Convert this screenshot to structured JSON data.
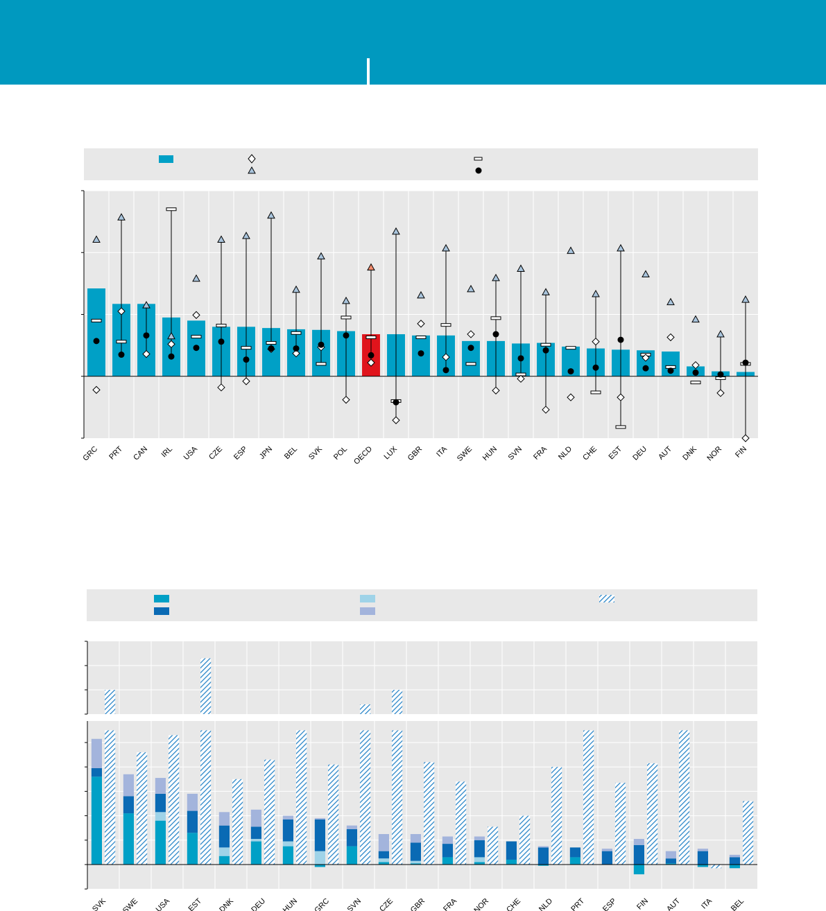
{
  "colors": {
    "banner": "#0099bf",
    "bar": "#00a0c6",
    "bar_highlight": "#e0141c",
    "triangle_fill": "#a9c4dc",
    "triangle_highlight": "#f08a6c",
    "panel_bg": "#e8e8e8",
    "stack_1": "#00a0c6",
    "stack_2": "#0a6ab4",
    "stack_3": "#9fd3e8",
    "stack_4": "#a3b4dc",
    "hatch": "#2b86c8"
  },
  "chart_data": [
    {
      "type": "bar",
      "title": "",
      "legend": [
        "",
        "",
        "",
        "",
        ""
      ],
      "categories": [
        "GRC",
        "PRT",
        "CAN",
        "IRL",
        "USA",
        "CZE",
        "ESP",
        "JPN",
        "BEL",
        "SVK",
        "POL",
        "OECD",
        "LUX",
        "GBR",
        "ITA",
        "SWE",
        "HUN",
        "SVN",
        "FRA",
        "NLD",
        "CHE",
        "EST",
        "DEU",
        "AUT",
        "DNK",
        "NOR",
        "FIN"
      ],
      "highlight": "OECD",
      "ylim": [
        -1.0,
        3.0
      ],
      "bars": [
        1.42,
        1.17,
        1.17,
        0.95,
        0.9,
        0.8,
        0.8,
        0.78,
        0.76,
        0.75,
        0.73,
        0.68,
        0.68,
        0.66,
        0.66,
        0.57,
        0.57,
        0.53,
        0.54,
        0.48,
        0.45,
        0.43,
        0.42,
        0.4,
        0.16,
        0.08,
        0.07
      ],
      "diamonds": [
        -0.22,
        1.05,
        0.36,
        0.52,
        0.99,
        -0.18,
        -0.08,
        0.44,
        0.37,
        0.47,
        -0.38,
        0.22,
        -0.71,
        0.85,
        0.31,
        0.68,
        -0.23,
        -0.04,
        -0.54,
        -0.34,
        0.56,
        -0.34,
        0.3,
        0.63,
        0.18,
        -0.27,
        -1.0
      ],
      "triangles": [
        2.21,
        2.57,
        1.15,
        0.65,
        1.58,
        2.21,
        2.27,
        2.6,
        1.4,
        1.94,
        1.22,
        1.76,
        2.34,
        1.31,
        2.07,
        1.41,
        1.59,
        1.74,
        1.36,
        2.03,
        1.33,
        2.07,
        1.65,
        1.2,
        0.92,
        0.68,
        1.24
      ],
      "bar_markers": [
        0.9,
        0.56,
        null,
        2.7,
        0.64,
        0.82,
        0.46,
        0.54,
        0.7,
        0.2,
        0.95,
        0.63,
        -0.4,
        0.63,
        0.83,
        0.2,
        0.94,
        0.03,
        0.51,
        0.46,
        -0.26,
        -0.82,
        0.35,
        0.15,
        -0.1,
        -0.03,
        0.2
      ],
      "dots": [
        0.57,
        0.35,
        0.66,
        0.32,
        0.46,
        0.56,
        0.27,
        0.45,
        0.45,
        0.51,
        0.66,
        0.34,
        -0.42,
        0.37,
        0.1,
        0.46,
        0.68,
        0.29,
        0.42,
        0.08,
        0.14,
        0.59,
        0.13,
        0.09,
        0.06,
        0.03,
        0.22
      ],
      "range_low": [
        null,
        0.35,
        0.36,
        0.32,
        null,
        -0.18,
        -0.08,
        0.44,
        0.37,
        0.2,
        -0.38,
        0.22,
        -0.71,
        null,
        0.1,
        null,
        -0.23,
        -0.04,
        -0.54,
        null,
        -0.26,
        -0.82,
        null,
        null,
        null,
        -0.27,
        -1.0
      ],
      "range_high": [
        2.21,
        2.57,
        1.15,
        2.7,
        1.58,
        2.21,
        2.27,
        2.6,
        1.4,
        1.94,
        1.22,
        1.76,
        2.34,
        1.31,
        2.07,
        1.41,
        1.59,
        1.74,
        1.36,
        2.03,
        1.33,
        2.07,
        1.65,
        1.2,
        0.92,
        0.68,
        1.24
      ]
    },
    {
      "type": "bar",
      "subtype": "stacked-with-hatched-total",
      "title": "",
      "legend": [
        "",
        "",
        "",
        "",
        ""
      ],
      "categories": [
        "SVK",
        "SWE",
        "USA",
        "EST",
        "DNK",
        "DEU",
        "HUN",
        "GRC",
        "SVN",
        "CZE",
        "GBR",
        "FRA",
        "NOR",
        "CHE",
        "NLD",
        "PRT",
        "ESP",
        "FIN",
        "AUT",
        "ITA",
        "BEL"
      ],
      "axis_break": {
        "lower_max": 5.5,
        "upper_min": 8.0,
        "upper_max": 11.0
      },
      "series": [
        {
          "name": "",
          "values": [
            3.6,
            2.1,
            1.8,
            1.3,
            0.35,
            0.95,
            0.75,
            -0.1,
            0.75,
            0.1,
            0.05,
            0.3,
            0.1,
            0.2,
            -0.05,
            0.3,
            0.0,
            -0.4,
            0.05,
            -0.1,
            -0.15
          ]
        },
        {
          "name": "",
          "values": [
            0.35,
            0.7,
            0.75,
            0.9,
            0.9,
            0.5,
            0.9,
            1.3,
            0.7,
            0.3,
            0.75,
            0.55,
            0.7,
            0.75,
            0.7,
            0.4,
            0.55,
            0.8,
            0.2,
            0.55,
            0.3
          ]
        },
        {
          "name": "",
          "values": [
            0.0,
            0.0,
            0.35,
            0.0,
            0.35,
            0.1,
            0.2,
            0.55,
            0.0,
            0.15,
            0.1,
            0.0,
            0.2,
            0.0,
            0.0,
            0.0,
            0.0,
            0.0,
            0.0,
            0.0,
            0.0
          ]
        },
        {
          "name": "",
          "values": [
            1.2,
            0.9,
            0.65,
            0.7,
            0.55,
            0.7,
            0.15,
            0.05,
            0.15,
            0.7,
            0.35,
            0.3,
            0.15,
            0.0,
            0.05,
            0.0,
            0.1,
            0.25,
            0.3,
            0.1,
            0.1
          ]
        },
        {
          "name": "hatched",
          "values": [
            9.0,
            4.6,
            5.3,
            10.3,
            3.5,
            4.3,
            6.9,
            4.1,
            8.4,
            9.0,
            4.2,
            3.4,
            1.55,
            2.0,
            4.0,
            6.7,
            3.35,
            4.15,
            6.8,
            -0.15,
            2.6
          ]
        }
      ]
    }
  ]
}
